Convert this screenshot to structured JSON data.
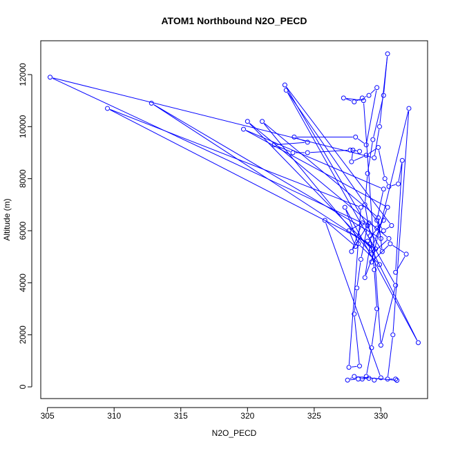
{
  "chart_data": {
    "type": "line",
    "title": "ATOM1 Northbound N2O_PECD",
    "xlabel": "N2O_PECD",
    "ylabel": "Altitude (m)",
    "xlim": [
      304.5,
      333.5
    ],
    "ylim": [
      -450,
      13300
    ],
    "x_ticks": [
      305,
      310,
      315,
      320,
      325,
      330
    ],
    "y_ticks": [
      0,
      2000,
      4000,
      6000,
      8000,
      10000,
      12000
    ],
    "grid": false,
    "legend": "none",
    "colors": {
      "series": "#0000ff",
      "axes": "#000000",
      "background": "#ffffff"
    },
    "series": [
      {
        "markers": "open-circle",
        "points": [
          [
            328.6,
            300
          ],
          [
            328.9,
            400
          ],
          [
            329.3,
            1500
          ],
          [
            329.7,
            3000
          ],
          [
            329.5,
            4500
          ],
          [
            329.2,
            5800
          ],
          [
            328.8,
            7000
          ],
          [
            329.0,
            8200
          ],
          [
            329.4,
            9500
          ],
          [
            330.2,
            11200
          ],
          [
            330.5,
            12800
          ],
          [
            329.9,
            10000
          ],
          [
            329.5,
            8800
          ],
          [
            305.2,
            11900
          ],
          [
            329.0,
            6200
          ],
          [
            328.5,
            4900
          ],
          [
            328.2,
            3800
          ],
          [
            328.0,
            2800
          ],
          [
            328.4,
            800
          ],
          [
            327.6,
            750
          ],
          [
            328.5,
            6900
          ],
          [
            309.5,
            10700
          ],
          [
            329.2,
            5500
          ],
          [
            328.8,
            4200
          ],
          [
            329.6,
            5300
          ],
          [
            312.8,
            10900
          ],
          [
            330.0,
            5700
          ],
          [
            329.7,
            6400
          ],
          [
            330.2,
            7600
          ],
          [
            319.7,
            9900
          ],
          [
            330.5,
            6900
          ],
          [
            329.3,
            5300
          ],
          [
            320.0,
            10200
          ],
          [
            330.6,
            5700
          ],
          [
            329.3,
            5100
          ],
          [
            321.1,
            10200
          ],
          [
            329.8,
            6500
          ],
          [
            330.1,
            5200
          ],
          [
            322.8,
            11600
          ],
          [
            330.8,
            6200
          ],
          [
            330.2,
            6000
          ],
          [
            322.9,
            11400
          ],
          [
            331.1,
            3900
          ],
          [
            330.0,
            1600
          ],
          [
            328.7,
            11000
          ],
          [
            327.2,
            11100
          ],
          [
            328.0,
            10950
          ],
          [
            328.6,
            11100
          ],
          [
            329.1,
            11200
          ],
          [
            329.7,
            11500
          ],
          [
            328.9,
            9300
          ],
          [
            328.1,
            9600
          ],
          [
            323.5,
            9600
          ],
          [
            324.5,
            9400
          ],
          [
            322.0,
            9300
          ],
          [
            323.4,
            9000
          ],
          [
            324.5,
            9000
          ],
          [
            327.7,
            9100
          ],
          [
            328.4,
            9050
          ],
          [
            327.9,
            9100
          ],
          [
            327.8,
            8650
          ],
          [
            328.9,
            8900
          ],
          [
            329.8,
            9200
          ],
          [
            330.3,
            8000
          ],
          [
            330.6,
            7700
          ],
          [
            331.3,
            7800
          ],
          [
            331.6,
            8700
          ],
          [
            331.1,
            4400
          ],
          [
            331.9,
            5100
          ],
          [
            330.7,
            5500
          ],
          [
            329.3,
            4800
          ],
          [
            332.1,
            10700
          ],
          [
            330.9,
            2000
          ],
          [
            330.5,
            300
          ],
          [
            331.1,
            300
          ],
          [
            331.2,
            250
          ],
          [
            328.0,
            400
          ],
          [
            327.5,
            260
          ],
          [
            328.3,
            300
          ],
          [
            329.1,
            330
          ],
          [
            329.5,
            260
          ],
          [
            330.0,
            350
          ],
          [
            325.8,
            6400
          ],
          [
            328.1,
            5400
          ],
          [
            327.6,
            6000
          ],
          [
            328.6,
            6300
          ],
          [
            327.8,
            5200
          ],
          [
            329.1,
            6300
          ],
          [
            329.7,
            6100
          ],
          [
            330.2,
            6400
          ],
          [
            329.0,
            5600
          ],
          [
            332.8,
            1700
          ],
          [
            327.3,
            6900
          ],
          [
            328.3,
            5500
          ],
          [
            329.9,
            4700
          ]
        ]
      }
    ]
  }
}
